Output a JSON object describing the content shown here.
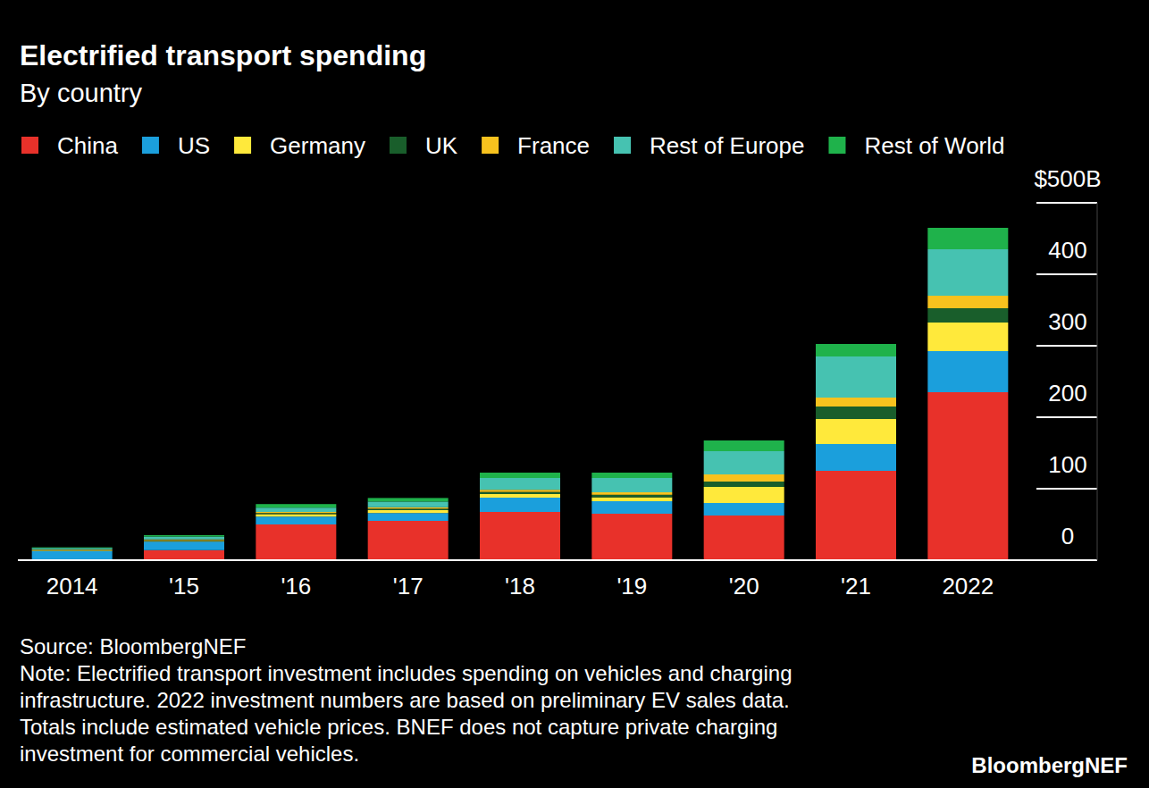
{
  "chart_data": {
    "type": "bar",
    "title": "Electrified transport spending",
    "subtitle": "By country",
    "stacked": true,
    "legend": "top",
    "grid": false,
    "categories": [
      "2014",
      "'15",
      "'16",
      "'17",
      "'18",
      "'19",
      "'20",
      "'21",
      "2022"
    ],
    "series": [
      {
        "name": "China",
        "color": "#e8312a",
        "values": [
          1,
          14,
          50,
          55,
          67.5,
          65,
          62.5,
          125,
          235
        ]
      },
      {
        "name": "US",
        "color": "#1b9fdc",
        "values": [
          12,
          12,
          11,
          11,
          20,
          17.5,
          17.5,
          37.5,
          57.5
        ]
      },
      {
        "name": "Germany",
        "color": "#ffe93b",
        "values": [
          1,
          1,
          3.5,
          4,
          5,
          5.5,
          22.5,
          35,
          40
        ]
      },
      {
        "name": "UK",
        "color": "#195e2b",
        "values": [
          0.5,
          1,
          1.5,
          2,
          3,
          3.5,
          7.5,
          17.5,
          20
        ]
      },
      {
        "name": "France",
        "color": "#f7c21e",
        "values": [
          0.5,
          1,
          1.5,
          2,
          3,
          3.5,
          10,
          12.5,
          17.5
        ]
      },
      {
        "name": "Rest of Europe",
        "color": "#46c2b1",
        "values": [
          2,
          4,
          6,
          8,
          16.5,
          20,
          32.5,
          57.5,
          65
        ]
      },
      {
        "name": "Rest of World",
        "color": "#1fb24b",
        "values": [
          1,
          2,
          5,
          5,
          7.5,
          7.5,
          15,
          17.5,
          30
        ]
      }
    ],
    "ylim": [
      0,
      500
    ],
    "yticks": [
      0,
      100,
      200,
      300,
      400,
      {
        "value": 500,
        "label": "$500B"
      }
    ],
    "source": "Source: BloombergNEF",
    "notes": [
      "Note: Electrified transport investment includes spending on vehicles and charging",
      "infrastructure. 2022 investment numbers are based on preliminary EV sales data.",
      "Totals include estimated vehicle prices. BNEF does not capture private charging",
      "investment for commercial vehicles."
    ],
    "brand": "BloombergNEF"
  }
}
